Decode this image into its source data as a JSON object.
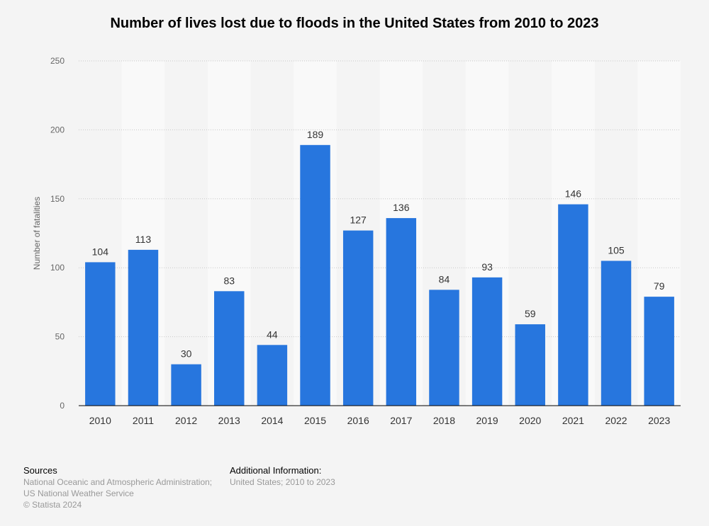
{
  "colors": {
    "bar": "#2776de",
    "band": "#f9f9f9",
    "grid": "#c8c8c8",
    "axis": "#000000"
  },
  "chart_data": {
    "type": "bar",
    "title": "Number of lives lost due to floods in the United States from 2010 to 2023",
    "xlabel": "",
    "ylabel": "Number of fatalities",
    "ylim": [
      0,
      250
    ],
    "yticks": [
      0,
      50,
      100,
      150,
      200,
      250
    ],
    "grid": true,
    "categories": [
      "2010",
      "2011",
      "2012",
      "2013",
      "2014",
      "2015",
      "2016",
      "2017",
      "2018",
      "2019",
      "2020",
      "2021",
      "2022",
      "2023"
    ],
    "values": [
      104,
      113,
      30,
      83,
      44,
      189,
      127,
      136,
      84,
      93,
      59,
      146,
      105,
      79
    ],
    "series": [
      {
        "name": "Number of fatalities",
        "values": [
          104,
          113,
          30,
          83,
          44,
          189,
          127,
          136,
          84,
          93,
          59,
          146,
          105,
          79
        ]
      }
    ]
  },
  "footer": {
    "sources_heading": "Sources",
    "sources_line1": "National Oceanic and Atmospheric Administration;",
    "sources_line2": "US National Weather Service",
    "copyright": "© Statista 2024",
    "additional_heading": "Additional Information:",
    "additional_line1": "United States; 2010 to 2023"
  }
}
